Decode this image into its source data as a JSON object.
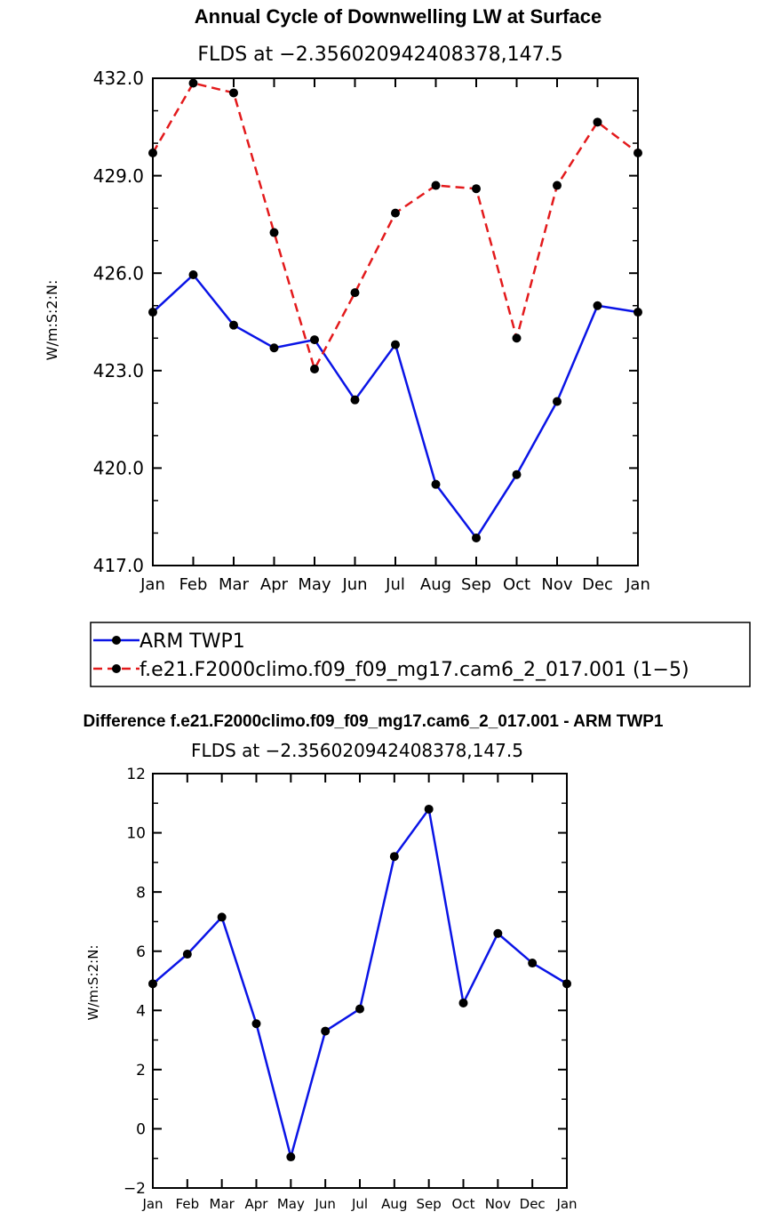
{
  "colors": {
    "obs": "#0a14e6",
    "model": "#e31a1c",
    "marker": "#000000"
  },
  "chart_data": [
    {
      "type": "line",
      "title": "Annual Cycle of Downwelling LW at Surface",
      "subtitle": "FLDS at −2.356020942408378,147.5",
      "ylabel": "W/m:S:2:N:",
      "ylim": [
        417.0,
        432.0
      ],
      "yticks": [
        417.0,
        420.0,
        423.0,
        426.0,
        429.0,
        432.0
      ],
      "ytick_labels": [
        "417.0",
        "420.0",
        "423.0",
        "426.0",
        "429.0",
        "432.0"
      ],
      "categories": [
        "Jan",
        "Feb",
        "Mar",
        "Apr",
        "May",
        "Jun",
        "Jul",
        "Aug",
        "Sep",
        "Oct",
        "Nov",
        "Dec",
        "Jan"
      ],
      "series": [
        {
          "name": "ARM TWP1",
          "style": "solid",
          "values": [
            424.8,
            425.95,
            424.4,
            423.7,
            423.95,
            422.1,
            423.8,
            419.5,
            417.85,
            419.8,
            422.05,
            425.0,
            424.8
          ]
        },
        {
          "name": "f.e21.F2000climo.f09_f09_mg17.cam6_2_017.001 (1−5)",
          "style": "dashed",
          "values": [
            429.7,
            431.85,
            431.55,
            427.25,
            423.05,
            425.4,
            427.85,
            428.7,
            428.6,
            424.0,
            428.7,
            430.65,
            429.7
          ]
        }
      ],
      "legend_position": "below"
    },
    {
      "type": "line",
      "title": "Difference f.e21.F2000climo.f09_f09_mg17.cam6_2_017.001 - ARM TWP1",
      "subtitle": "FLDS at −2.356020942408378,147.5",
      "ylabel": "W/m:S:2:N:",
      "ylim": [
        -2,
        12
      ],
      "yticks": [
        -2,
        0,
        2,
        4,
        6,
        8,
        10,
        12
      ],
      "ytick_labels": [
        "−2",
        "0",
        "2",
        "4",
        "6",
        "8",
        "10",
        "12"
      ],
      "categories": [
        "Jan",
        "Feb",
        "Mar",
        "Apr",
        "May",
        "Jun",
        "Jul",
        "Aug",
        "Sep",
        "Oct",
        "Nov",
        "Dec",
        "Jan"
      ],
      "series": [
        {
          "name": "Difference",
          "style": "solid",
          "values": [
            4.9,
            5.9,
            7.15,
            3.55,
            -0.95,
            3.3,
            4.05,
            9.2,
            10.8,
            4.25,
            6.6,
            5.6,
            4.9
          ]
        }
      ]
    }
  ]
}
